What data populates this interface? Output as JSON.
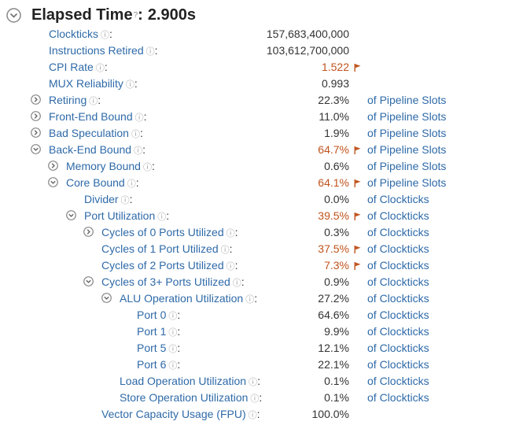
{
  "header": {
    "title": "Elapsed Time",
    "help": "?",
    "value": "2.900s"
  },
  "rows": [
    {
      "label": "Clockticks",
      "value": "157,683,400,000",
      "unit": "",
      "flag": false,
      "toggle": "none"
    },
    {
      "label": "Instructions Retired",
      "value": "103,612,700,000",
      "unit": "",
      "flag": false,
      "toggle": "none"
    },
    {
      "label": "CPI Rate",
      "value": "1.522",
      "unit": "",
      "flag": true,
      "toggle": "none"
    },
    {
      "label": "MUX Reliability",
      "value": "0.993",
      "unit": "",
      "flag": false,
      "toggle": "none"
    },
    {
      "label": "Retiring",
      "value": "22.3%",
      "unit": "of Pipeline Slots",
      "flag": false,
      "toggle": "collapsed"
    },
    {
      "label": "Front-End Bound",
      "value": "11.0%",
      "unit": "of Pipeline Slots",
      "flag": false,
      "toggle": "collapsed"
    },
    {
      "label": "Bad Speculation",
      "value": "1.9%",
      "unit": "of Pipeline Slots",
      "flag": false,
      "toggle": "collapsed"
    },
    {
      "label": "Back-End Bound",
      "value": "64.7%",
      "unit": "of Pipeline Slots",
      "flag": true,
      "toggle": "expanded"
    },
    {
      "label": "Memory Bound",
      "value": "0.6%",
      "unit": "of Pipeline Slots",
      "flag": false,
      "toggle": "collapsed"
    },
    {
      "label": "Core Bound",
      "value": "64.1%",
      "unit": "of Pipeline Slots",
      "flag": true,
      "toggle": "expanded"
    },
    {
      "label": "Divider",
      "value": "0.0%",
      "unit": "of Clockticks",
      "flag": false,
      "toggle": "none"
    },
    {
      "label": "Port Utilization",
      "value": "39.5%",
      "unit": "of Clockticks",
      "flag": true,
      "toggle": "expanded"
    },
    {
      "label": "Cycles of 0 Ports Utilized",
      "value": "0.3%",
      "unit": "of Clockticks",
      "flag": false,
      "toggle": "collapsed"
    },
    {
      "label": "Cycles of 1 Port Utilized",
      "value": "37.5%",
      "unit": "of Clockticks",
      "flag": true,
      "toggle": "none"
    },
    {
      "label": "Cycles of 2 Ports Utilized",
      "value": "7.3%",
      "unit": "of Clockticks",
      "flag": true,
      "toggle": "none"
    },
    {
      "label": "Cycles of 3+ Ports Utilized",
      "value": "0.9%",
      "unit": "of Clockticks",
      "flag": false,
      "toggle": "expanded"
    },
    {
      "label": "ALU Operation Utilization",
      "value": "27.2%",
      "unit": "of Clockticks",
      "flag": false,
      "toggle": "expanded"
    },
    {
      "label": "Port 0",
      "value": "64.6%",
      "unit": "of Clockticks",
      "flag": false,
      "toggle": "none"
    },
    {
      "label": "Port 1",
      "value": "9.9%",
      "unit": "of Clockticks",
      "flag": false,
      "toggle": "none"
    },
    {
      "label": "Port 5",
      "value": "12.1%",
      "unit": "of Clockticks",
      "flag": false,
      "toggle": "none"
    },
    {
      "label": "Port 6",
      "value": "22.1%",
      "unit": "of Clockticks",
      "flag": false,
      "toggle": "none"
    },
    {
      "label": "Load Operation Utilization",
      "value": "0.1%",
      "unit": "of Clockticks",
      "flag": false,
      "toggle": "none"
    },
    {
      "label": "Store Operation Utilization",
      "value": "0.1%",
      "unit": "of Clockticks",
      "flag": false,
      "toggle": "none"
    },
    {
      "label": "Vector Capacity Usage (FPU)",
      "value": "100.0%",
      "unit": "",
      "flag": false,
      "toggle": "none"
    }
  ],
  "colors": {
    "link": "#2e6aa8",
    "flagged": "#c0531c",
    "icon": "#888888"
  }
}
